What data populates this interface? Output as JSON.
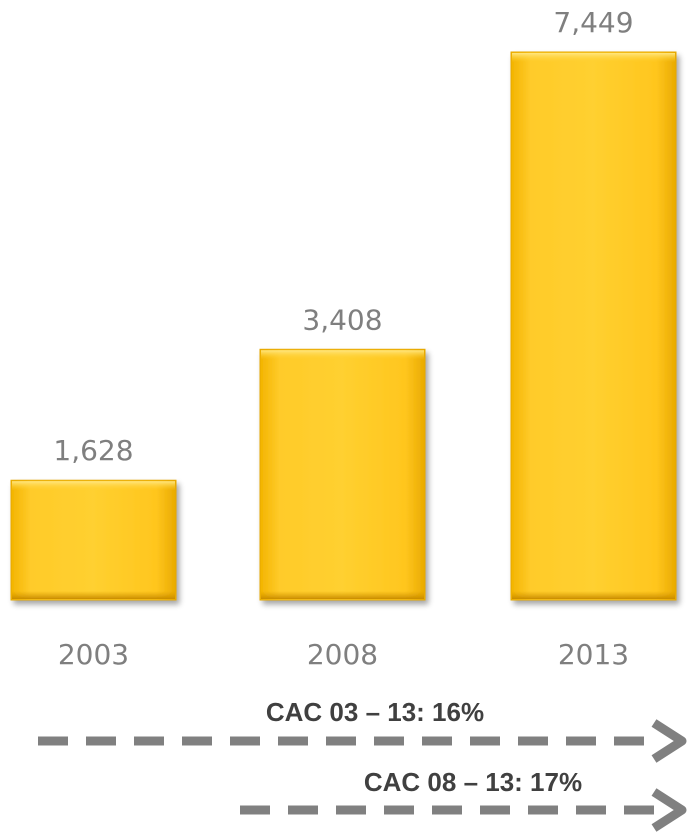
{
  "chart_data": {
    "type": "bar",
    "categories": [
      "2003",
      "2008",
      "2013"
    ],
    "values": [
      1628,
      3408,
      7449
    ],
    "value_labels": [
      "1,628",
      "3,408",
      "7,449"
    ],
    "title": "",
    "xlabel": "",
    "ylabel": "",
    "ylim": [
      0,
      7449
    ],
    "grid": false,
    "y_axis_visible": false,
    "bar_color": "#FFC824",
    "bar_edge_color": "#E6A800",
    "label_color": "#7f7f7f",
    "annotations": [
      {
        "text": "CAC 03 – 13: 16%",
        "from_category": "2003",
        "to_category": "2013"
      },
      {
        "text": "CAC 08 – 13: 17%",
        "from_category": "2008",
        "to_category": "2013"
      }
    ]
  }
}
